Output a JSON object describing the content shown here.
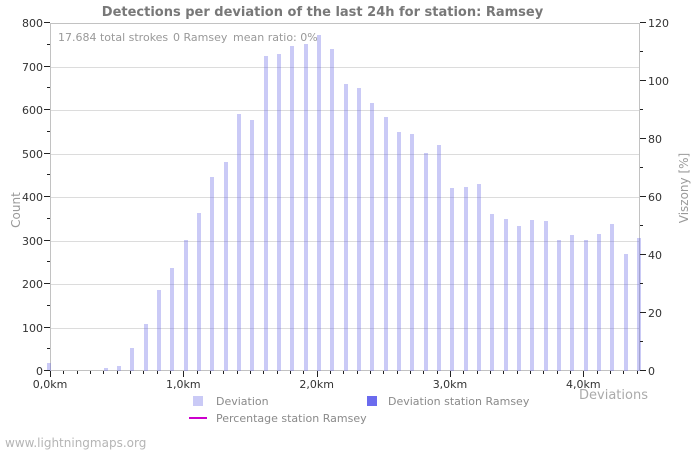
{
  "title": "Detections per deviation of the last 24h for station: Ramsey",
  "annotations": {
    "total_strokes": "17.684 total strokes",
    "station_strokes": "0 Ramsey",
    "mean_ratio": "mean ratio: 0%"
  },
  "footer": "www.lightningmaps.org",
  "colors": {
    "bar_fill": "rgba(102,102,230,0.35)",
    "bar_station_fill": "#6b6bee",
    "percentage_line": "#cc00cc",
    "gridline": "#dcdcdc",
    "frame": "#c2c2c2",
    "tick": "#222222"
  },
  "legend": {
    "deviation_label": "Deviation",
    "deviation_station_label": "Deviation station Ramsey",
    "percentage_label": "Percentage station Ramsey"
  },
  "chart_data": {
    "type": "bar",
    "title": "Detections per deviation of the last 24h for station: Ramsey",
    "xlabel": "Deviations",
    "ylabel_left": "Count",
    "ylabel_right": "Viszony [%]",
    "x_unit": "km",
    "bin_width_km": 0.1,
    "x_km": [
      0.0,
      0.1,
      0.2,
      0.3,
      0.4,
      0.5,
      0.6,
      0.7,
      0.8,
      0.9,
      1.0,
      1.1,
      1.2,
      1.3,
      1.4,
      1.5,
      1.6,
      1.7,
      1.8,
      1.9,
      2.0,
      2.1,
      2.2,
      2.3,
      2.4,
      2.5,
      2.6,
      2.7,
      2.8,
      2.9,
      3.0,
      3.1,
      3.2,
      3.3,
      3.4,
      3.5,
      3.6,
      3.7,
      3.8,
      3.9,
      4.0,
      4.1,
      4.2,
      4.3,
      4.4
    ],
    "series": [
      {
        "name": "Deviation",
        "axis": "left",
        "values": [
          18,
          0,
          0,
          0,
          6,
          11,
          52,
          108,
          186,
          236,
          300,
          363,
          446,
          481,
          590,
          576,
          723,
          728,
          748,
          752,
          772,
          740,
          660,
          650,
          617,
          585,
          550,
          545,
          500,
          520,
          420,
          424,
          430,
          360,
          350,
          334,
          348,
          344,
          302,
          313,
          302,
          315,
          338,
          269,
          305
        ]
      },
      {
        "name": "Deviation station Ramsey",
        "axis": "left",
        "values_constant": 0,
        "note": "station reported 0 strokes; no dark bars visible"
      },
      {
        "name": "Percentage station Ramsey",
        "axis": "right",
        "values_constant": 0,
        "note": "mean ratio 0%; line not visible above baseline"
      }
    ],
    "ylim_left": [
      0,
      800
    ],
    "ylim_right": [
      0,
      120
    ],
    "y_left_ticks": [
      0,
      100,
      200,
      300,
      400,
      500,
      600,
      700,
      800
    ],
    "y_right_ticks": [
      0,
      20,
      40,
      60,
      80,
      100,
      120
    ],
    "x_tick_labels": [
      "0,0km",
      "1,0km",
      "2,0km",
      "3,0km",
      "4,0km"
    ],
    "grid": "horizontal-only",
    "legend_position": "bottom"
  }
}
